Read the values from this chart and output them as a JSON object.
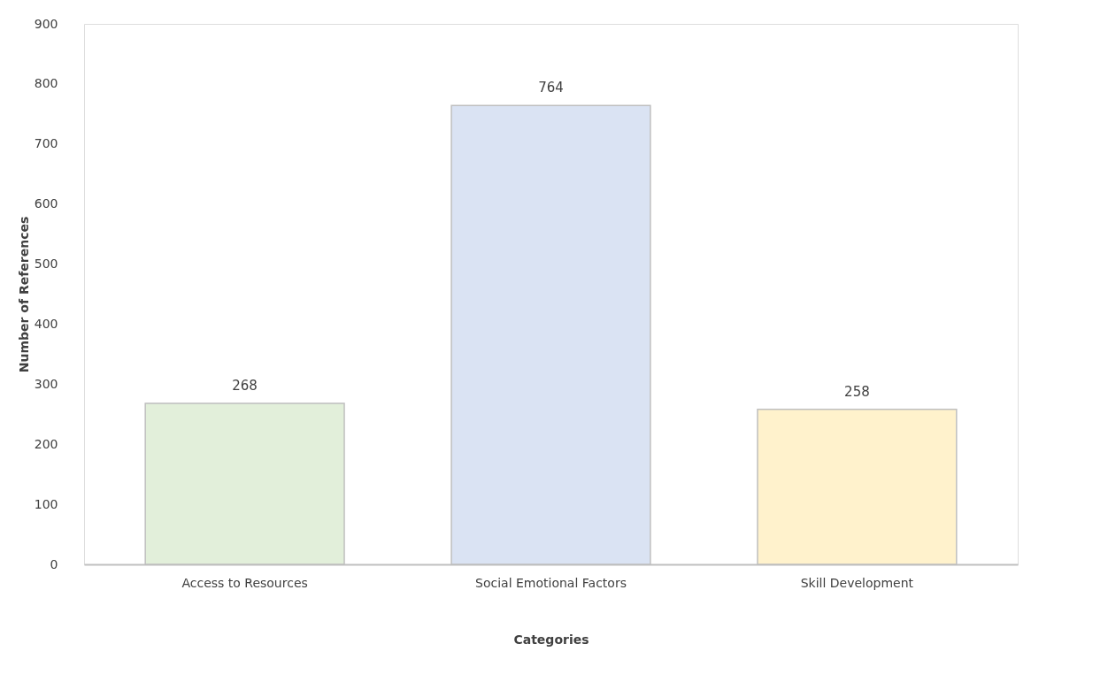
{
  "chart_data": {
    "type": "bar",
    "xlabel": "Categories",
    "ylabel": "Number of References",
    "categories": [
      "Access to Resources",
      "Social Emotional Factors",
      "Skill Development"
    ],
    "values": [
      268,
      764,
      258
    ],
    "colors": [
      "#e2efda",
      "#dae3f3",
      "#fff2cc"
    ],
    "ylim": [
      0,
      900
    ],
    "yticks": [
      0,
      100,
      200,
      300,
      400,
      500,
      600,
      700,
      800,
      900
    ],
    "grid": false,
    "data_labels": true
  }
}
